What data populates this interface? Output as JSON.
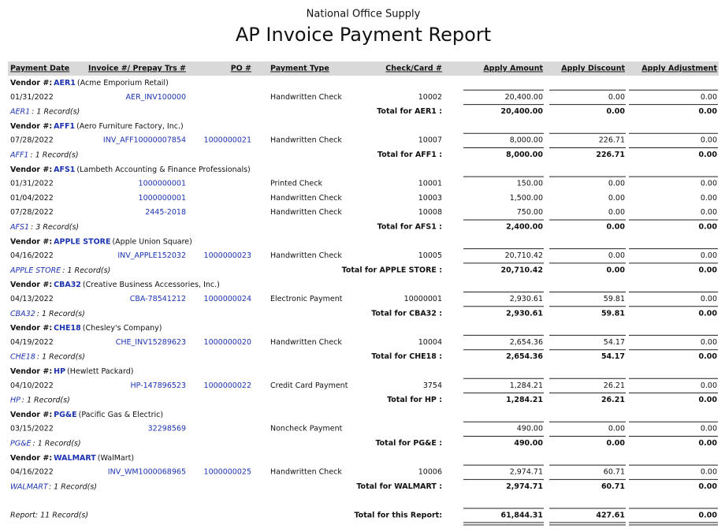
{
  "header": {
    "company": "National Office Supply",
    "title": "AP Invoice Payment Report"
  },
  "columns": [
    "Payment Date",
    "Invoice #/ Prepay Trs #",
    "PO #",
    "Payment Type",
    "Check/Card #",
    "Apply Amount",
    "Apply Discount",
    "Apply Adjustment"
  ],
  "vendor_label": "Vendor #:",
  "vendors": [
    {
      "code": "AER1",
      "name": "(Acme Emporium Retail)",
      "rows": [
        [
          "01/31/2022",
          "AER_INV100000",
          null,
          "Handwritten Check",
          "10002",
          "20,400.00",
          "0.00",
          "0.00"
        ]
      ],
      "record_code": "AER1",
      "record_count": ": 1 Record(s)",
      "total_label": "Total for AER1 :",
      "totals": [
        "20,400.00",
        "0.00",
        "0.00"
      ]
    },
    {
      "code": "AFF1",
      "name": "(Aero Furniture Factory, Inc.)",
      "rows": [
        [
          "07/28/2022",
          "INV_AFF10000007854",
          "1000000021",
          "Handwritten Check",
          "10007",
          "8,000.00",
          "226.71",
          "0.00"
        ]
      ],
      "record_code": "AFF1",
      "record_count": ": 1 Record(s)",
      "total_label": "Total for AFF1 :",
      "totals": [
        "8,000.00",
        "226.71",
        "0.00"
      ]
    },
    {
      "code": "AFS1",
      "name": "(Lambeth Accounting & Finance Professionals)",
      "rows": [
        [
          "01/31/2022",
          "1000000001",
          null,
          "Printed Check",
          "10001",
          "150.00",
          "0.00",
          "0.00"
        ],
        [
          "01/04/2022",
          "1000000001",
          null,
          "Handwritten Check",
          "10003",
          "1,500.00",
          "0.00",
          "0.00"
        ],
        [
          "07/28/2022",
          "2445-2018",
          null,
          "Handwritten Check",
          "10008",
          "750.00",
          "0.00",
          "0.00"
        ]
      ],
      "record_code": "AFS1",
      "record_count": ": 3 Record(s)",
      "total_label": "Total for AFS1 :",
      "totals": [
        "2,400.00",
        "0.00",
        "0.00"
      ]
    },
    {
      "code": "APPLE STORE",
      "name": "(Apple Union Square)",
      "rows": [
        [
          "04/16/2022",
          "INV_APPLE152032",
          "1000000023",
          "Handwritten Check",
          "10005",
          "20,710.42",
          "0.00",
          "0.00"
        ]
      ],
      "record_code": "APPLE STORE",
      "record_count": ": 1 Record(s)",
      "total_label": "Total for APPLE STORE :",
      "totals": [
        "20,710.42",
        "0.00",
        "0.00"
      ]
    },
    {
      "code": "CBA32",
      "name": "(Creative Business Accessories, Inc.)",
      "rows": [
        [
          "04/13/2022",
          "CBA-78541212",
          "1000000024",
          "Electronic Payment",
          "10000001",
          "2,930.61",
          "59.81",
          "0.00"
        ]
      ],
      "record_code": "CBA32",
      "record_count": ": 1 Record(s)",
      "total_label": "Total for CBA32 :",
      "totals": [
        "2,930.61",
        "59.81",
        "0.00"
      ]
    },
    {
      "code": "CHE18",
      "name": "(Chesley's Company)",
      "rows": [
        [
          "04/19/2022",
          "CHE_INV15289623",
          "1000000020",
          "Handwritten Check",
          "10004",
          "2,654.36",
          "54.17",
          "0.00"
        ]
      ],
      "record_code": "CHE18",
      "record_count": ": 1 Record(s)",
      "total_label": "Total for CHE18 :",
      "totals": [
        "2,654.36",
        "54.17",
        "0.00"
      ]
    },
    {
      "code": "HP",
      "name": "(Hewlett Packard)",
      "rows": [
        [
          "04/10/2022",
          "HP-147896523",
          "1000000022",
          "Credit Card Payment",
          "3754",
          "1,284.21",
          "26.21",
          "0.00"
        ]
      ],
      "record_code": "HP",
      "record_count": ": 1 Record(s)",
      "total_label": "Total for HP :",
      "totals": [
        "1,284.21",
        "26.21",
        "0.00"
      ]
    },
    {
      "code": "PG&E",
      "name": "(Pacific Gas & Electric)",
      "rows": [
        [
          "03/15/2022",
          "32298569",
          null,
          "Noncheck Payment",
          null,
          "490.00",
          "0.00",
          "0.00"
        ]
      ],
      "record_code": "PG&E",
      "record_count": ": 1 Record(s)",
      "total_label": "Total for PG&E :",
      "totals": [
        "490.00",
        "0.00",
        "0.00"
      ]
    },
    {
      "code": "WALMART",
      "name": "(WalMart)",
      "rows": [
        [
          "04/16/2022",
          "INV_WM1000068965",
          "1000000025",
          "Handwritten Check",
          "10006",
          "2,974.71",
          "60.71",
          "0.00"
        ]
      ],
      "record_code": "WALMART",
      "record_count": ": 1 Record(s)",
      "total_label": "Total for WALMART :",
      "totals": [
        "2,974.71",
        "60.71",
        "0.00"
      ]
    }
  ],
  "report": {
    "count": "Report: 11 Record(s)",
    "total_label": "Total for this Report:",
    "totals": [
      "61,844.31",
      "427.61",
      "0.00"
    ]
  }
}
